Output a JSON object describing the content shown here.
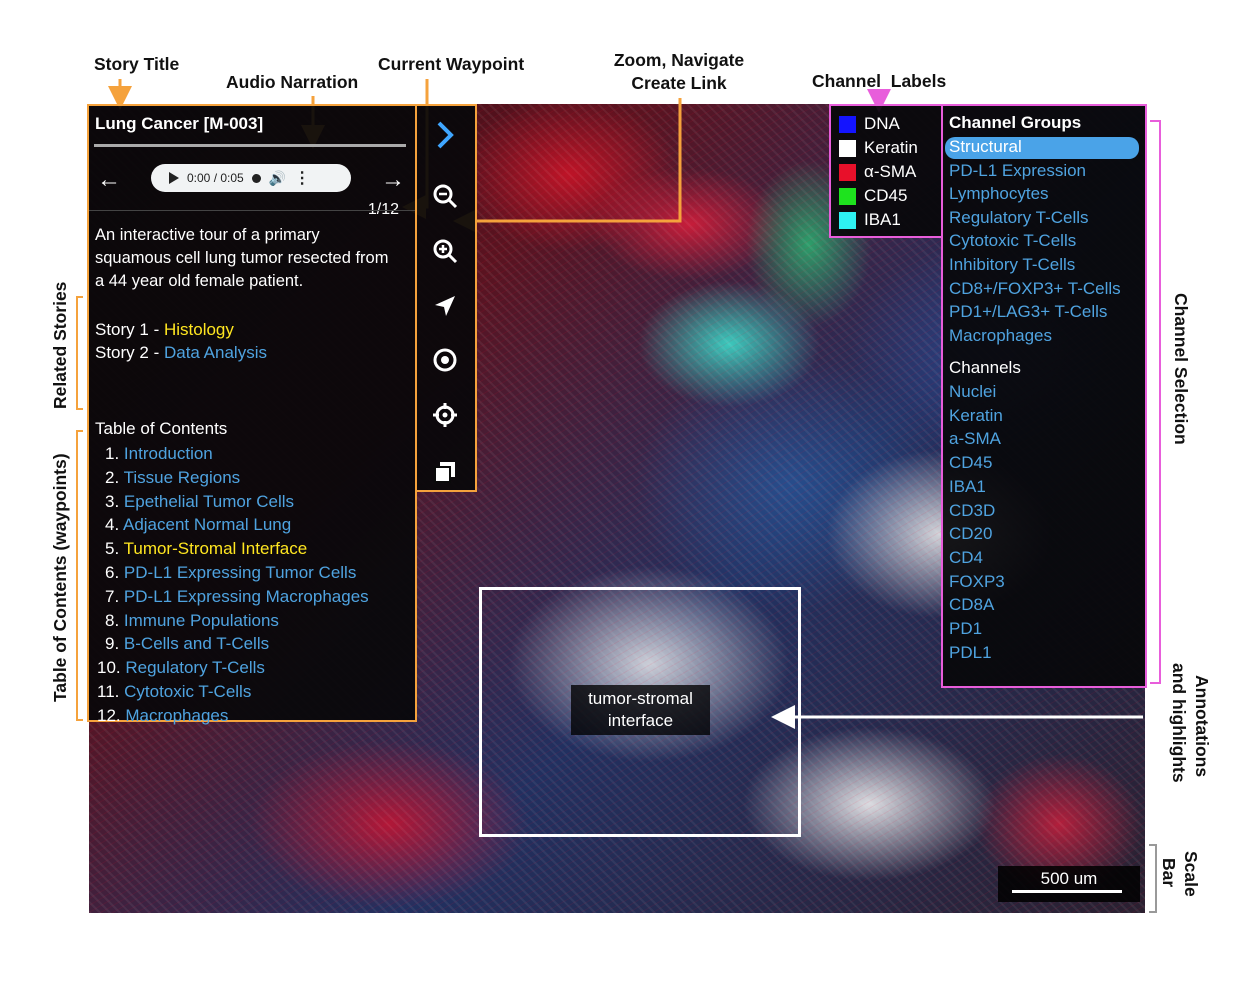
{
  "callouts": {
    "story_title": "Story Title",
    "audio_narration": "Audio Narration",
    "current_waypoint": "Current Waypoint",
    "zoom_line1": "Zoom, Navigate",
    "zoom_line2": "Create Link",
    "channel_labels": "Channel  Labels",
    "related_stories": "Related Stories",
    "toc_waypoints": "Table of Contents (waypoints)",
    "channel_selection": "Channel Selection",
    "annotations_line1": "Annotations",
    "annotations_line2": "and highlights",
    "scale_line1": "Scale",
    "scale_line2": "Bar"
  },
  "story": {
    "title": "Lung Cancer [M-003]",
    "audio_time": "0:00 / 0:05",
    "waypoint": "1/12",
    "description": "An interactive tour of a primary squamous cell lung tumor resected from a 44 year old female patient.",
    "related": [
      {
        "prefix": "Story 1 - ",
        "link": "Histology"
      },
      {
        "prefix": "Story 2 - ",
        "link": "Data Analysis"
      }
    ],
    "toc_title": "Table of Contents",
    "toc": [
      {
        "num": "1.",
        "label": "Introduction"
      },
      {
        "num": "2.",
        "label": "Tissue Regions"
      },
      {
        "num": "3.",
        "label": "Epethelial Tumor Cells"
      },
      {
        "num": "4.",
        "label": "Adjacent Normal Lung"
      },
      {
        "num": "5.",
        "label": "Tumor-Stromal Interface"
      },
      {
        "num": "6.",
        "label": "PD-L1 Expressing Tumor Cells"
      },
      {
        "num": "7.",
        "label": "PD-L1 Expressing Macrophages"
      },
      {
        "num": "8.",
        "label": "Immune Populations"
      },
      {
        "num": "9.",
        "label": "B-Cells and T-Cells"
      },
      {
        "num": "10.",
        "label": "Regulatory T-Cells"
      },
      {
        "num": "11.",
        "label": "Cytotoxic T-Cells"
      },
      {
        "num": "12.",
        "label": "Macrophages"
      }
    ],
    "active_toc": 4
  },
  "toolbar": [
    "expand-icon",
    "zoom-out-icon",
    "zoom-in-icon",
    "navigate-arrow-icon",
    "target-icon",
    "crosshair-icon",
    "copy-link-icon"
  ],
  "channel_labels": [
    {
      "name": "DNA",
      "color": "#1414ff"
    },
    {
      "name": "Keratin",
      "color": "#ffffff"
    },
    {
      "name": "α-SMA",
      "color": "#e8102a"
    },
    {
      "name": "CD45",
      "color": "#1ee31e"
    },
    {
      "name": "IBA1",
      "color": "#2ef2f2"
    }
  ],
  "channel_groups_title": "Channel Groups",
  "channel_groups": [
    "Structural",
    "PD-L1 Expression",
    "Lymphocytes",
    "Regulatory T-Cells",
    "Cytotoxic T-Cells",
    "Inhibitory T-Cells",
    "CD8+/FOXP3+ T-Cells",
    "PD1+/LAG3+ T-Cells",
    "Macrophages"
  ],
  "channels_title": "Channels",
  "channels": [
    "Nuclei",
    "Keratin",
    "a-SMA",
    "CD45",
    "IBA1",
    "CD3D",
    "CD20",
    "CD4",
    "FOXP3",
    "CD8A",
    "PD1",
    "PDL1"
  ],
  "annotation": {
    "line1": "tumor-stromal",
    "line2": "interface"
  },
  "scale_bar": "500 um",
  "colors": {
    "story_border": "#f5a23c",
    "channel_border": "#e85ddb",
    "link_blue": "#4fa3e0",
    "highlight_yellow": "#ffe620",
    "active_group": "#4aa3e8"
  }
}
